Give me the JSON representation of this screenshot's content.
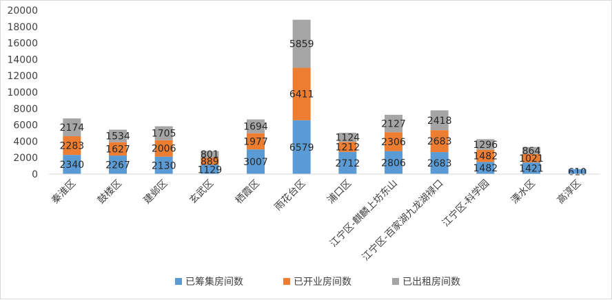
{
  "chart_data": {
    "type": "bar",
    "stacked": true,
    "title": "",
    "xlabel": "",
    "ylabel": "",
    "ylim": [
      0,
      20000
    ],
    "yticks": [
      0,
      2000,
      4000,
      6000,
      8000,
      10000,
      12000,
      14000,
      16000,
      18000,
      20000
    ],
    "grid": false,
    "legend_position": "bottom",
    "categories": [
      "秦淮区",
      "鼓楼区",
      "建邺区",
      "玄武区",
      "栖霞区",
      "雨花台区",
      "浦口区",
      "江宁区-麒麟上坊东山",
      "江宁区-百家湖九龙湖禄口",
      "江宁区-科学园",
      "溧水区",
      "高淳区"
    ],
    "series": [
      {
        "name": "已筹集房间数",
        "color": "#5b9bd5",
        "values": [
          2340,
          2267,
          2130,
          1129,
          3007,
          6579,
          2712,
          2806,
          2683,
          1482,
          1421,
          610
        ]
      },
      {
        "name": "已开业房间数",
        "color": "#ed7d31",
        "values": [
          2283,
          1627,
          2006,
          889,
          1977,
          6411,
          1212,
          2306,
          2683,
          1482,
          1021,
          null
        ]
      },
      {
        "name": "已出租房间数",
        "color": "#a5a5a5",
        "values": [
          2174,
          1534,
          1705,
          801,
          1694,
          5859,
          1124,
          2127,
          2418,
          1296,
          864,
          null
        ]
      }
    ]
  }
}
